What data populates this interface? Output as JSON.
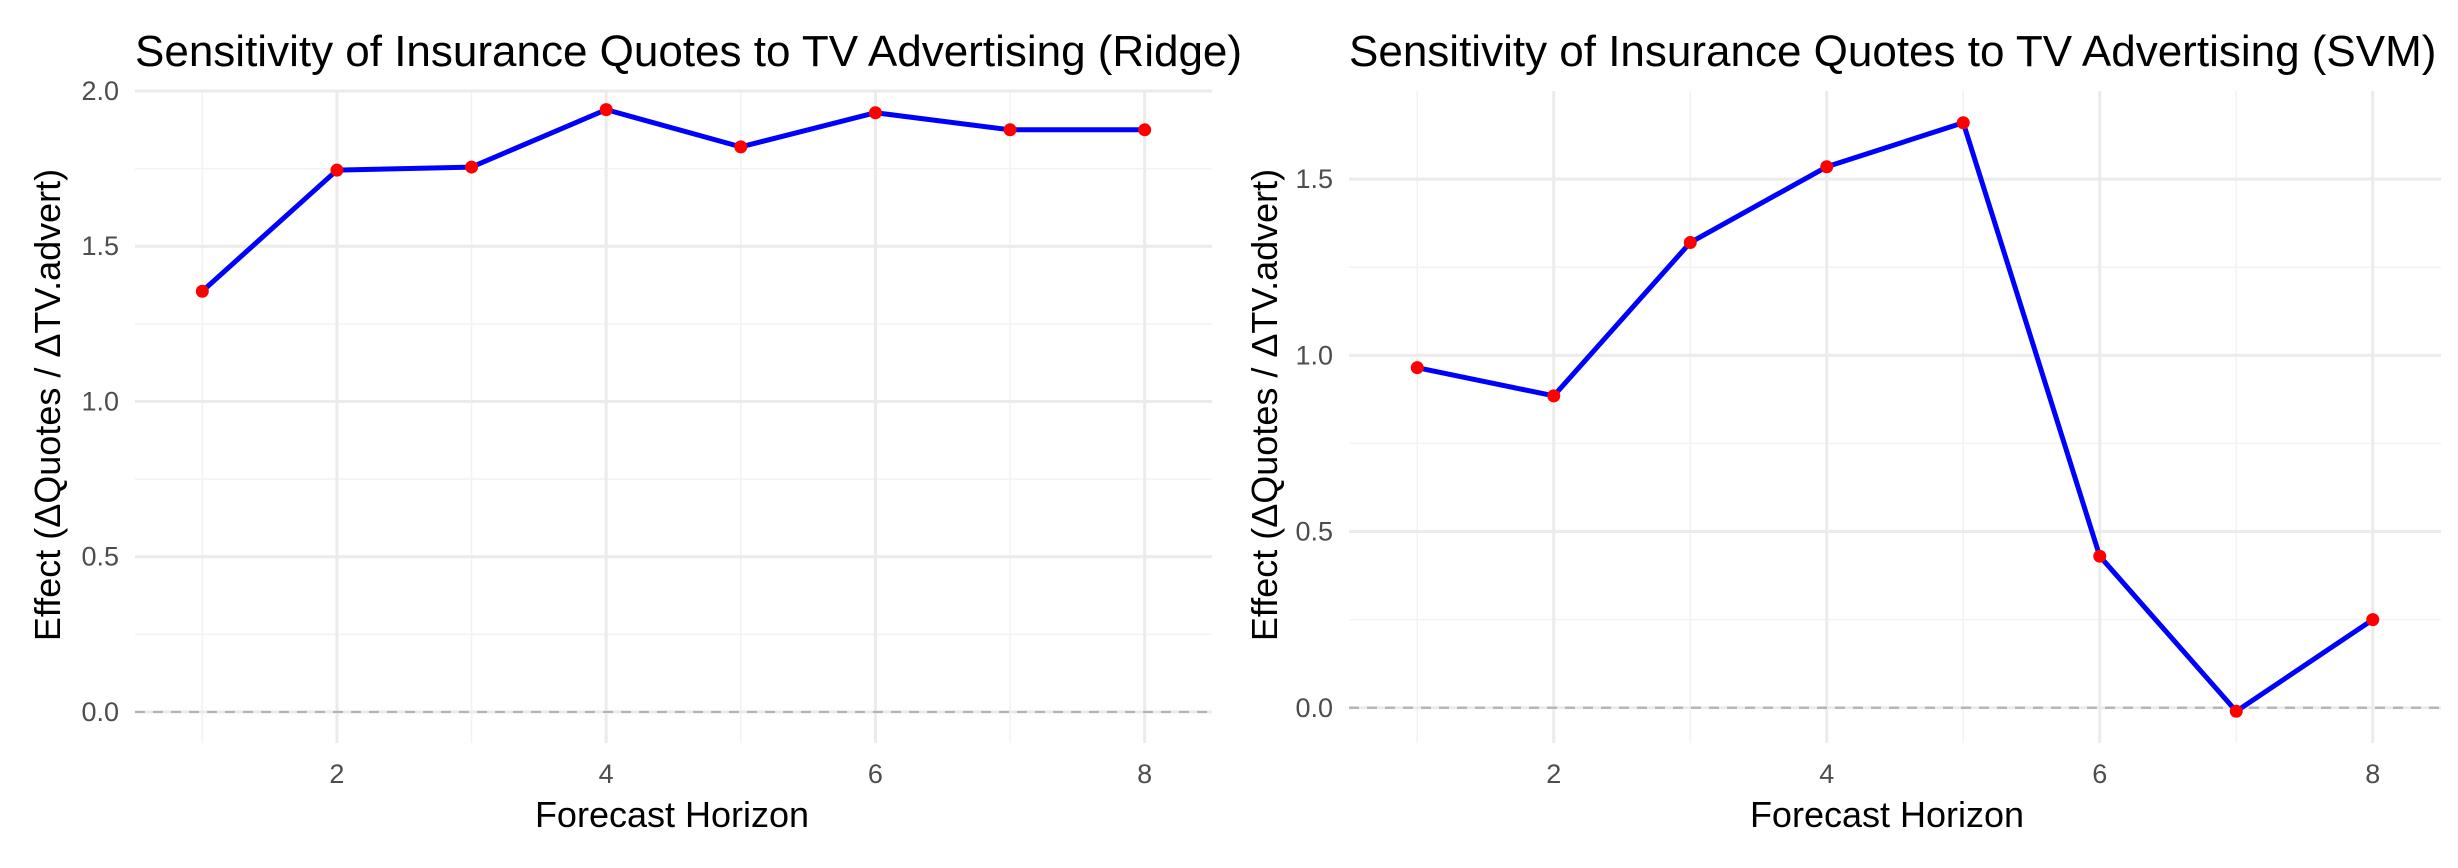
{
  "chart_data": [
    {
      "type": "line",
      "title": "Sensitivity of Insurance Quotes to TV Advertising (Ridge)",
      "xlabel": "Forecast Horizon",
      "ylabel": "Effect (ΔQuotes / ΔTV.advert)",
      "x": [
        1,
        2,
        3,
        4,
        5,
        6,
        7,
        8
      ],
      "series": [
        {
          "name": "Ridge effect",
          "values": [
            1.355,
            1.745,
            1.755,
            1.94,
            1.82,
            1.93,
            1.875,
            1.875
          ]
        }
      ],
      "xlim": [
        0.5,
        8.5
      ],
      "ylim": [
        -0.1,
        2.0
      ],
      "xticks": [
        2,
        4,
        6,
        8
      ],
      "yticks": [
        0.0,
        0.5,
        1.0,
        1.5,
        2.0
      ],
      "ytick_labels": [
        "0.0",
        "0.5",
        "1.0",
        "1.5",
        "2.0"
      ],
      "reference_line": 0,
      "colors": {
        "line": "#0000ff",
        "points": "#ff0000"
      }
    },
    {
      "type": "line",
      "title": "Sensitivity of Insurance Quotes to TV Advertising (SVM)",
      "xlabel": "Forecast Horizon",
      "ylabel": "Effect (ΔQuotes / ΔTV.advert)",
      "x": [
        1,
        2,
        3,
        4,
        5,
        6,
        7,
        8
      ],
      "series": [
        {
          "name": "SVM effect",
          "values": [
            0.965,
            0.885,
            1.32,
            1.535,
            1.66,
            0.43,
            -0.01,
            0.25
          ]
        }
      ],
      "xlim": [
        0.5,
        8.5
      ],
      "ylim": [
        -0.1,
        1.75
      ],
      "xticks": [
        2,
        4,
        6,
        8
      ],
      "yticks": [
        0.0,
        0.5,
        1.0,
        1.5
      ],
      "ytick_labels": [
        "0.0",
        "0.5",
        "1.0",
        "1.5"
      ],
      "reference_line": 0,
      "colors": {
        "line": "#0000ff",
        "points": "#ff0000"
      }
    }
  ]
}
